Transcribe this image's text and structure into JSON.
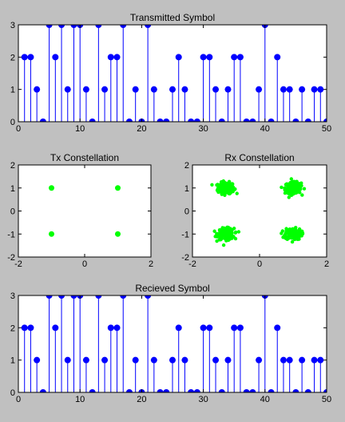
{
  "chart_data": [
    {
      "type": "stem",
      "title": "Transmitted Symbol",
      "xlim": [
        0,
        50
      ],
      "ylim": [
        0,
        3
      ],
      "xticks": [
        0,
        10,
        20,
        30,
        40,
        50
      ],
      "yticks": [
        0,
        1,
        2,
        3
      ],
      "x": [
        1,
        2,
        3,
        4,
        5,
        6,
        7,
        8,
        9,
        10,
        11,
        12,
        13,
        14,
        15,
        16,
        17,
        18,
        19,
        20,
        21,
        22,
        23,
        24,
        25,
        26,
        27,
        28,
        29,
        30,
        31,
        32,
        33,
        34,
        35,
        36,
        37,
        38,
        39,
        40,
        41,
        42,
        43,
        44,
        45,
        46,
        47,
        48,
        49,
        50
      ],
      "values": [
        2,
        2,
        1,
        0,
        3,
        2,
        3,
        1,
        3,
        3,
        1,
        0,
        3,
        1,
        2,
        2,
        3,
        0,
        1,
        0,
        3,
        1,
        0,
        0,
        1,
        2,
        1,
        0,
        0,
        2,
        2,
        1,
        0,
        1,
        2,
        2,
        0,
        0,
        1,
        3,
        0,
        2,
        1,
        1,
        0,
        1,
        0,
        1,
        1,
        0
      ],
      "color": "#0000ff"
    },
    {
      "type": "scatter",
      "title": "Tx Constellation",
      "xlim": [
        -2,
        2
      ],
      "ylim": [
        -2,
        2
      ],
      "xticks": [
        -2,
        0,
        2
      ],
      "yticks": [
        -2,
        -1,
        0,
        1,
        2
      ],
      "points": [
        [
          -1,
          1
        ],
        [
          1,
          1
        ],
        [
          -1,
          -1
        ],
        [
          1,
          -1
        ]
      ],
      "color": "#00ff00"
    },
    {
      "type": "scatter",
      "title": "Rx Constellation",
      "xlim": [
        -2,
        2
      ],
      "ylim": [
        -2,
        2
      ],
      "xticks": [
        -2,
        0,
        2
      ],
      "yticks": [
        -2,
        -1,
        0,
        1,
        2
      ],
      "clusters": [
        [
          -1,
          1
        ],
        [
          1,
          1
        ],
        [
          -1,
          -1
        ],
        [
          1,
          -1
        ]
      ],
      "noise": 0.12,
      "points_per_cluster": 200,
      "color": "#00ff00"
    },
    {
      "type": "stem",
      "title": "Recieved Symbol",
      "xlim": [
        0,
        50
      ],
      "ylim": [
        0,
        3
      ],
      "xticks": [
        0,
        10,
        20,
        30,
        40,
        50
      ],
      "yticks": [
        0,
        1,
        2,
        3
      ],
      "x": [
        1,
        2,
        3,
        4,
        5,
        6,
        7,
        8,
        9,
        10,
        11,
        12,
        13,
        14,
        15,
        16,
        17,
        18,
        19,
        20,
        21,
        22,
        23,
        24,
        25,
        26,
        27,
        28,
        29,
        30,
        31,
        32,
        33,
        34,
        35,
        36,
        37,
        38,
        39,
        40,
        41,
        42,
        43,
        44,
        45,
        46,
        47,
        48,
        49,
        50
      ],
      "values": [
        2,
        2,
        1,
        0,
        3,
        2,
        3,
        1,
        3,
        3,
        1,
        0,
        3,
        1,
        2,
        2,
        3,
        0,
        1,
        0,
        3,
        1,
        0,
        0,
        1,
        2,
        1,
        0,
        0,
        2,
        2,
        1,
        0,
        1,
        2,
        2,
        0,
        0,
        1,
        3,
        0,
        2,
        1,
        1,
        0,
        1,
        0,
        1,
        1,
        0
      ],
      "color": "#0000ff"
    }
  ]
}
